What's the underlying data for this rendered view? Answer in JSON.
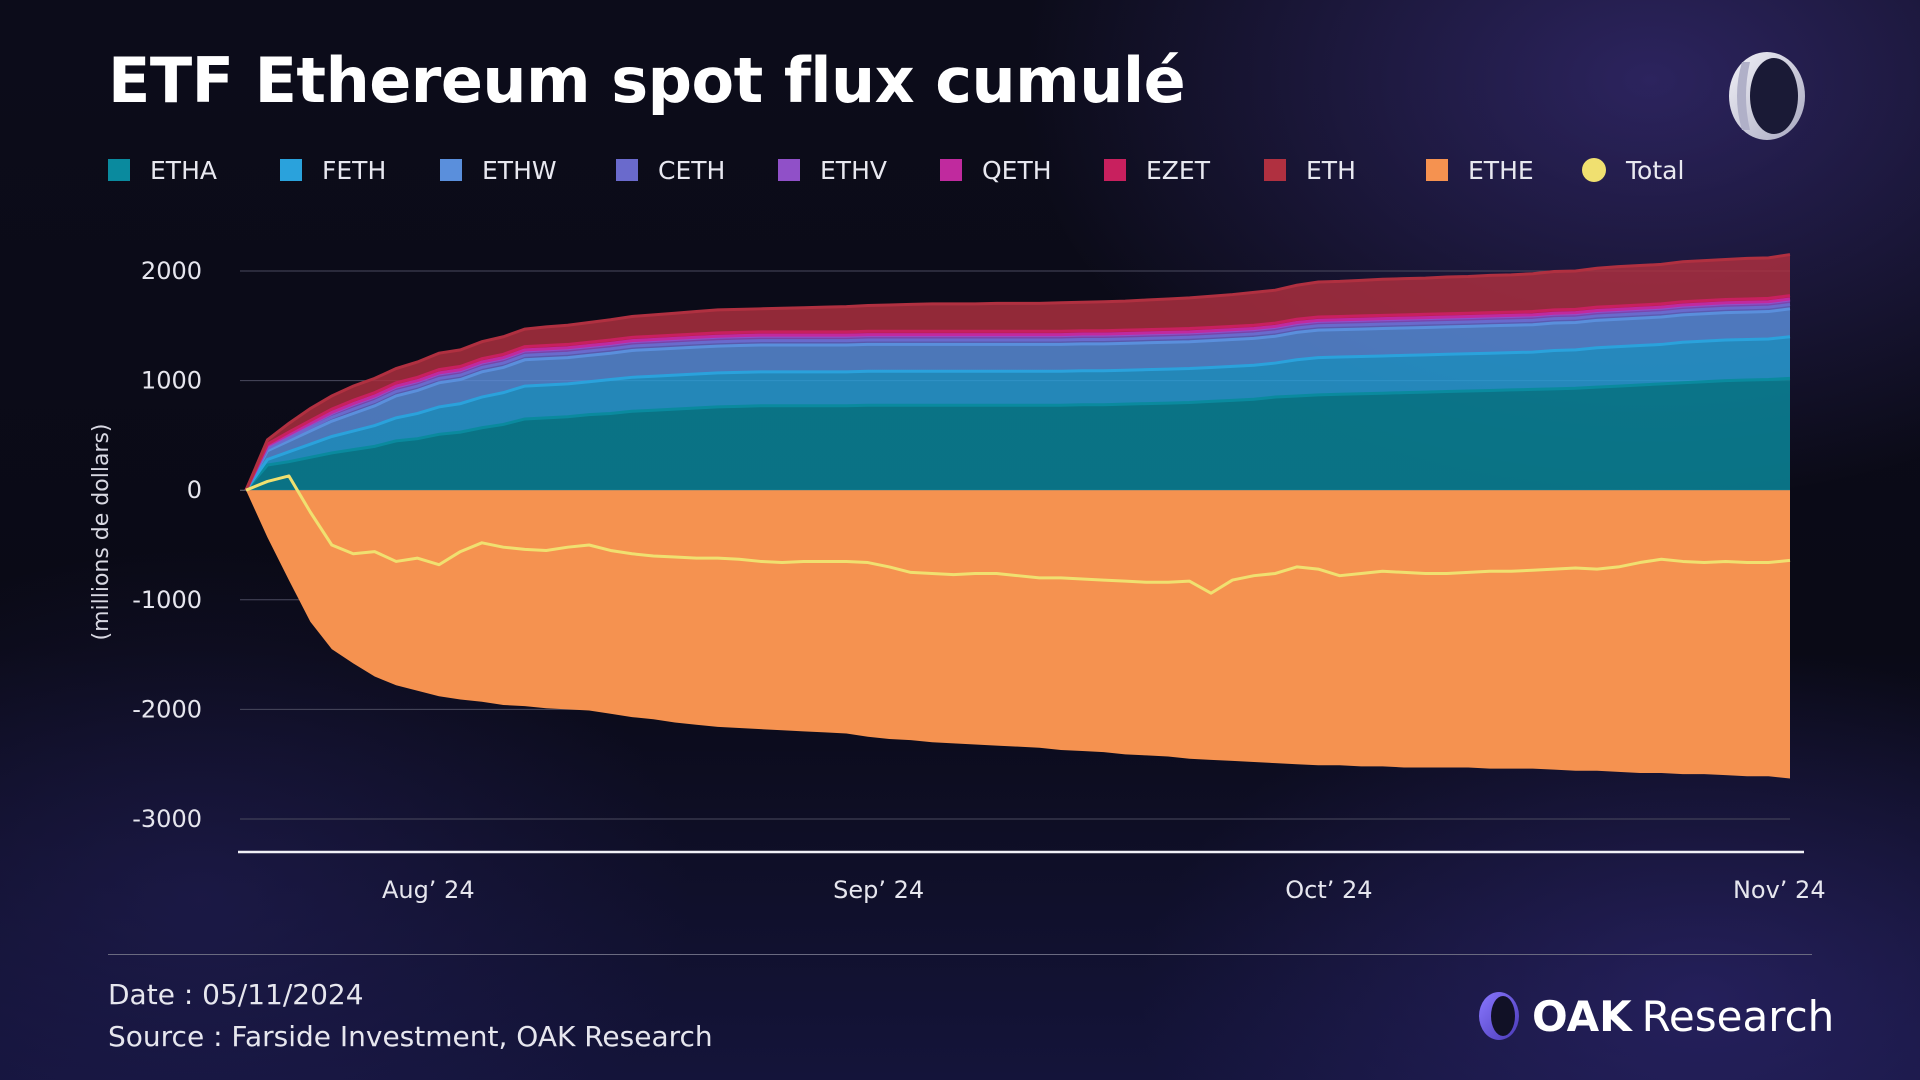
{
  "header": {
    "title": "ETF Ethereum spot flux cumulé"
  },
  "footer": {
    "date": "Date : 05/11/2024",
    "source": "Source : Farside Investment, OAK Research",
    "brand_oak": "OAK",
    "brand_research": "Research"
  },
  "colors": {
    "background": "#0a0b18",
    "etha": "#0a8a9e",
    "feth": "#2aa2dc",
    "ethw": "#5a8fdc",
    "ceth": "#6a6acc",
    "ethv": "#9050c8",
    "qeth": "#c02a9e",
    "ezet": "#c8205e",
    "eth": "#b03040",
    "ethe": "#f59250",
    "total": "#f0e070"
  },
  "chart_data": {
    "type": "area",
    "title": "ETF Ethereum spot flux cumulé",
    "ylabel": "(millions de dollars)",
    "xlabel": "",
    "ylim": [
      -3000,
      2000
    ],
    "yticks": [
      2000,
      1000,
      0,
      -1000,
      -2000,
      -3000
    ],
    "xticks": [
      {
        "label": "Aug’ 24",
        "x": 8.5
      },
      {
        "label": "Sep’ 24",
        "x": 29.5
      },
      {
        "label": "Oct’ 24",
        "x": 50.5
      },
      {
        "label": "Nov’ 24",
        "x": 71.5
      }
    ],
    "grid": true,
    "legend": "top",
    "x": [
      0,
      1,
      2,
      3,
      4,
      5,
      6,
      7,
      8,
      9,
      10,
      11,
      12,
      13,
      14,
      15,
      16,
      17,
      18,
      19,
      20,
      21,
      22,
      23,
      24,
      25,
      26,
      27,
      28,
      29,
      30,
      31,
      32,
      33,
      34,
      35,
      36,
      37,
      38,
      39,
      40,
      41,
      42,
      43,
      44,
      45,
      46,
      47,
      48,
      49,
      50,
      51,
      52,
      53,
      54,
      55,
      56,
      57,
      58,
      59,
      60,
      61,
      62,
      63,
      64,
      65,
      66,
      67,
      68,
      69,
      70,
      71,
      72
    ],
    "series": [
      {
        "name": "ETHA",
        "color": "#0a8a9e",
        "values": [
          0,
          230,
          260,
          300,
          340,
          370,
          400,
          450,
          470,
          510,
          530,
          570,
          600,
          650,
          660,
          670,
          690,
          700,
          720,
          730,
          740,
          750,
          760,
          765,
          770,
          770,
          770,
          770,
          770,
          775,
          775,
          775,
          775,
          775,
          775,
          775,
          775,
          775,
          775,
          780,
          780,
          785,
          790,
          795,
          800,
          810,
          820,
          830,
          850,
          860,
          870,
          875,
          880,
          885,
          890,
          895,
          900,
          905,
          910,
          915,
          920,
          925,
          930,
          940,
          950,
          960,
          970,
          980,
          990,
          1000,
          1005,
          1010,
          1020
        ]
      },
      {
        "name": "FETH",
        "color": "#2aa2dc",
        "values": [
          0,
          50,
          90,
          120,
          150,
          170,
          190,
          210,
          230,
          250,
          260,
          280,
          290,
          300,
          300,
          300,
          300,
          310,
          310,
          310,
          310,
          310,
          310,
          310,
          310,
          310,
          310,
          310,
          310,
          310,
          310,
          310,
          310,
          310,
          310,
          310,
          310,
          310,
          310,
          310,
          310,
          310,
          310,
          310,
          310,
          310,
          310,
          310,
          310,
          330,
          340,
          340,
          340,
          340,
          340,
          340,
          340,
          340,
          340,
          340,
          340,
          350,
          350,
          360,
          360,
          360,
          360,
          370,
          370,
          370,
          370,
          370,
          380
        ]
      },
      {
        "name": "ETHW",
        "color": "#5a8fdc",
        "values": [
          0,
          80,
          100,
          120,
          140,
          160,
          180,
          200,
          210,
          220,
          220,
          230,
          230,
          240,
          240,
          240,
          240,
          240,
          245,
          245,
          245,
          245,
          245,
          245,
          245,
          245,
          245,
          245,
          245,
          245,
          245,
          245,
          245,
          245,
          245,
          245,
          245,
          245,
          245,
          245,
          245,
          245,
          245,
          245,
          245,
          245,
          245,
          245,
          245,
          250,
          250,
          250,
          250,
          250,
          250,
          250,
          250,
          250,
          250,
          250,
          250,
          250,
          250,
          250,
          250,
          250,
          250,
          250,
          250,
          250,
          250,
          250,
          255
        ]
      },
      {
        "name": "CETH",
        "color": "#6a6acc",
        "values": [
          0,
          20,
          25,
          30,
          35,
          40,
          40,
          40,
          40,
          40,
          40,
          40,
          40,
          40,
          40,
          40,
          40,
          40,
          40,
          40,
          40,
          40,
          40,
          40,
          40,
          40,
          40,
          40,
          40,
          40,
          40,
          40,
          40,
          40,
          40,
          40,
          40,
          40,
          40,
          40,
          40,
          40,
          40,
          40,
          40,
          40,
          40,
          40,
          40,
          40,
          40,
          40,
          40,
          40,
          40,
          40,
          40,
          40,
          40,
          40,
          40,
          40,
          40,
          40,
          40,
          40,
          40,
          40,
          40,
          40,
          40,
          40,
          40
        ]
      },
      {
        "name": "ETHV",
        "color": "#9050c8",
        "values": [
          0,
          20,
          25,
          30,
          35,
          40,
          40,
          40,
          40,
          40,
          40,
          40,
          40,
          40,
          40,
          40,
          40,
          40,
          40,
          40,
          40,
          40,
          40,
          40,
          40,
          40,
          40,
          40,
          40,
          40,
          40,
          40,
          40,
          40,
          40,
          40,
          40,
          40,
          40,
          40,
          40,
          40,
          40,
          40,
          40,
          40,
          40,
          40,
          40,
          40,
          40,
          40,
          40,
          40,
          40,
          40,
          40,
          40,
          40,
          40,
          40,
          40,
          40,
          40,
          40,
          40,
          40,
          40,
          40,
          40,
          40,
          40,
          40
        ]
      },
      {
        "name": "QETH",
        "color": "#c02a9e",
        "values": [
          0,
          10,
          10,
          10,
          10,
          10,
          10,
          10,
          10,
          10,
          10,
          10,
          10,
          10,
          10,
          10,
          10,
          10,
          10,
          10,
          10,
          10,
          10,
          10,
          10,
          10,
          10,
          10,
          10,
          10,
          10,
          10,
          10,
          10,
          10,
          10,
          10,
          10,
          10,
          10,
          10,
          10,
          10,
          10,
          10,
          10,
          10,
          10,
          10,
          10,
          10,
          10,
          10,
          10,
          10,
          10,
          10,
          10,
          10,
          10,
          10,
          10,
          10,
          10,
          10,
          10,
          10,
          10,
          10,
          10,
          10,
          10,
          10
        ]
      },
      {
        "name": "EZET",
        "color": "#c8205e",
        "values": [
          0,
          10,
          20,
          25,
          30,
          30,
          30,
          30,
          30,
          30,
          30,
          30,
          30,
          30,
          30,
          30,
          30,
          30,
          30,
          30,
          30,
          30,
          30,
          30,
          30,
          30,
          30,
          30,
          30,
          30,
          30,
          30,
          30,
          30,
          30,
          30,
          30,
          30,
          30,
          30,
          30,
          30,
          30,
          30,
          30,
          30,
          30,
          30,
          30,
          30,
          30,
          30,
          30,
          30,
          30,
          30,
          30,
          30,
          30,
          30,
          30,
          30,
          30,
          30,
          30,
          30,
          30,
          30,
          30,
          30,
          30,
          30,
          30
        ]
      },
      {
        "name": "ETH",
        "color": "#b03040",
        "values": [
          0,
          40,
          80,
          110,
          120,
          130,
          130,
          130,
          140,
          150,
          150,
          155,
          160,
          160,
          170,
          175,
          180,
          185,
          190,
          195,
          200,
          205,
          210,
          210,
          210,
          215,
          220,
          225,
          230,
          235,
          240,
          245,
          250,
          250,
          250,
          255,
          255,
          255,
          260,
          260,
          265,
          265,
          270,
          275,
          280,
          285,
          290,
          300,
          300,
          310,
          320,
          320,
          325,
          330,
          330,
          330,
          335,
          335,
          340,
          340,
          345,
          350,
          350,
          355,
          360,
          360,
          360,
          365,
          365,
          365,
          370,
          370,
          375
        ]
      },
      {
        "name": "ETHE",
        "color": "#f59250",
        "values": [
          0,
          -430,
          -820,
          -1200,
          -1450,
          -1580,
          -1700,
          -1780,
          -1830,
          -1880,
          -1910,
          -1930,
          -1960,
          -1970,
          -1990,
          -2000,
          -2010,
          -2040,
          -2070,
          -2090,
          -2120,
          -2140,
          -2160,
          -2170,
          -2180,
          -2190,
          -2200,
          -2210,
          -2220,
          -2250,
          -2270,
          -2280,
          -2300,
          -2310,
          -2320,
          -2330,
          -2340,
          -2350,
          -2370,
          -2380,
          -2390,
          -2410,
          -2420,
          -2430,
          -2450,
          -2460,
          -2470,
          -2480,
          -2490,
          -2500,
          -2510,
          -2510,
          -2520,
          -2520,
          -2530,
          -2530,
          -2530,
          -2530,
          -2540,
          -2540,
          -2540,
          -2550,
          -2560,
          -2560,
          -2570,
          -2580,
          -2580,
          -2590,
          -2590,
          -2600,
          -2610,
          -2610,
          -2630
        ]
      },
      {
        "name": "Total",
        "color": "#f0e070",
        "values": [
          0,
          80,
          130,
          -200,
          -500,
          -580,
          -560,
          -650,
          -620,
          -680,
          -560,
          -480,
          -520,
          -540,
          -550,
          -520,
          -500,
          -550,
          -580,
          -600,
          -610,
          -620,
          -620,
          -630,
          -650,
          -660,
          -650,
          -650,
          -650,
          -660,
          -700,
          -750,
          -760,
          -770,
          -760,
          -760,
          -780,
          -800,
          -800,
          -810,
          -820,
          -830,
          -840,
          -840,
          -830,
          -940,
          -820,
          -780,
          -760,
          -700,
          -720,
          -780,
          -760,
          -740,
          -750,
          -760,
          -760,
          -750,
          -740,
          -740,
          -730,
          -720,
          -710,
          -720,
          -700,
          -660,
          -630,
          -650,
          -660,
          -650,
          -660,
          -660,
          -640
        ]
      }
    ]
  }
}
